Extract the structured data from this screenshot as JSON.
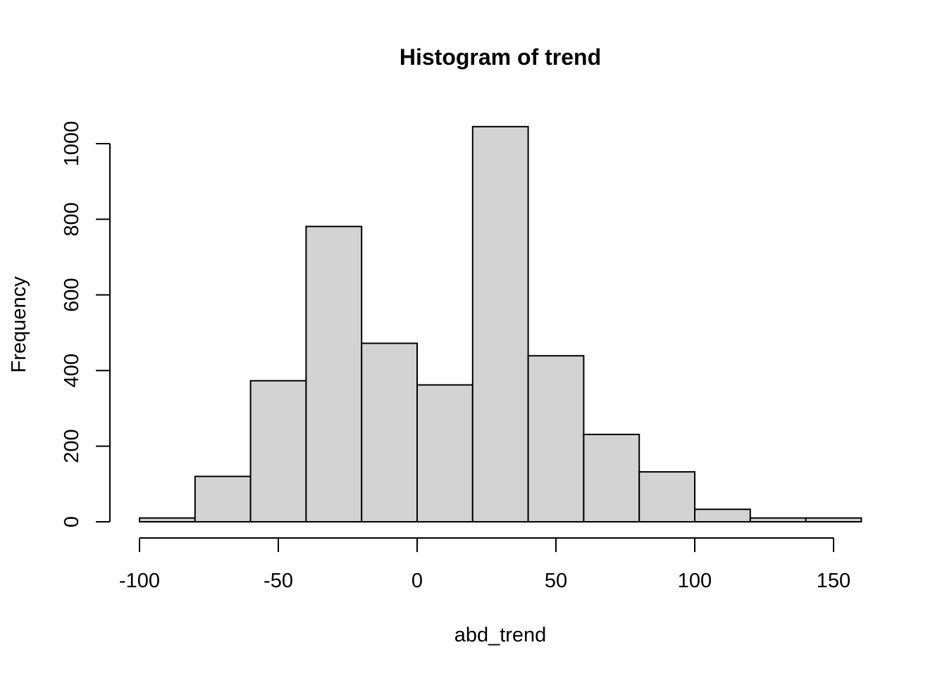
{
  "chart_data": {
    "type": "bar",
    "title": "Histogram of trend",
    "xlabel": "abd_trend",
    "ylabel": "Frequency",
    "bin_edges": [
      -100,
      -80,
      -60,
      -40,
      -20,
      0,
      20,
      40,
      60,
      80,
      100,
      120,
      140,
      160
    ],
    "values": [
      10,
      120,
      373,
      781,
      472,
      362,
      1045,
      439,
      231,
      132,
      33,
      10,
      10
    ],
    "xlim": [
      -100,
      160
    ],
    "ylim": [
      0,
      1000
    ],
    "x_ticks": [
      -100,
      -50,
      0,
      50,
      100,
      150
    ],
    "x_tick_labels": [
      "-100",
      "-50",
      "0",
      "50",
      "100",
      "150"
    ],
    "y_ticks": [
      0,
      200,
      400,
      600,
      800,
      1000
    ],
    "y_tick_labels": [
      "0",
      "200",
      "400",
      "600",
      "800",
      "1000"
    ],
    "bar_fill": "#d3d3d3",
    "bar_stroke": "#000000",
    "grid": false,
    "legend": "none"
  }
}
